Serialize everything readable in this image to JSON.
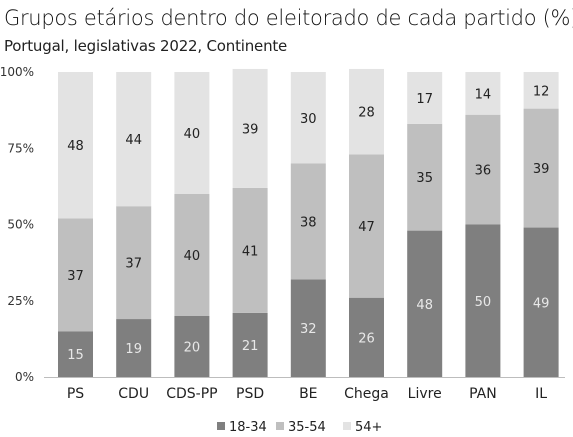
{
  "chart_data": {
    "type": "bar",
    "stacked": true,
    "title": "Grupos etários dentro do eleitorado de cada partido (%)",
    "subtitle": "Portugal, legislativas 2022, Continente",
    "categories": [
      "PS",
      "CDU",
      "CDS-PP",
      "PSD",
      "BE",
      "Chega",
      "Livre",
      "PAN",
      "IL"
    ],
    "series": [
      {
        "name": "18-34",
        "color": "#7f7f7f",
        "label_color": "#e8e8e8",
        "values": [
          15,
          19,
          20,
          21,
          32,
          26,
          48,
          50,
          49
        ]
      },
      {
        "name": "35-54",
        "color": "#bfbfbf",
        "label_color": "#222222",
        "values": [
          37,
          37,
          40,
          41,
          38,
          47,
          35,
          36,
          39
        ]
      },
      {
        "name": "54+",
        "color": "#e3e3e3",
        "label_color": "#222222",
        "values": [
          48,
          44,
          40,
          39,
          30,
          28,
          17,
          14,
          12
        ]
      }
    ],
    "yticks": [
      "0%",
      "25%",
      "50%",
      "75%",
      "100%"
    ],
    "ylim": [
      0,
      100
    ],
    "legend_position": "bottom-right",
    "grid": false
  }
}
